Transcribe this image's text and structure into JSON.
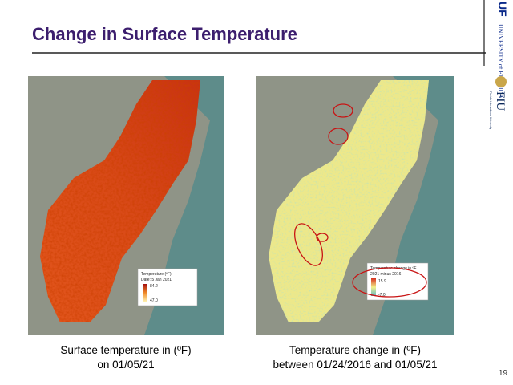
{
  "header": {
    "title": "Change in Surface Temperature"
  },
  "logos": {
    "uf_mark": "UF",
    "uf_name": "UNIVERSITY of FLORIDA",
    "fiu_mark": "FIU",
    "fiu_name": "Florida International University"
  },
  "left_panel": {
    "legend_title": "Temperature (ºF)",
    "legend_date": "Date: 5 Jan 2021",
    "legend_max": "84.2",
    "legend_min": "47.0",
    "caption_line1": "Surface temperature in (ºF)",
    "caption_line2": "on 01/05/21"
  },
  "right_panel": {
    "legend_title": "Temperature change in ºF",
    "legend_subtitle": "2021 minus 2016",
    "legend_max": "15.9",
    "legend_min": "-7.0",
    "caption_line1": "Temperature change in (ºF)",
    "caption_line2": "between 01/24/2016 and 01/05/21"
  },
  "footer": {
    "page_number": "19"
  }
}
